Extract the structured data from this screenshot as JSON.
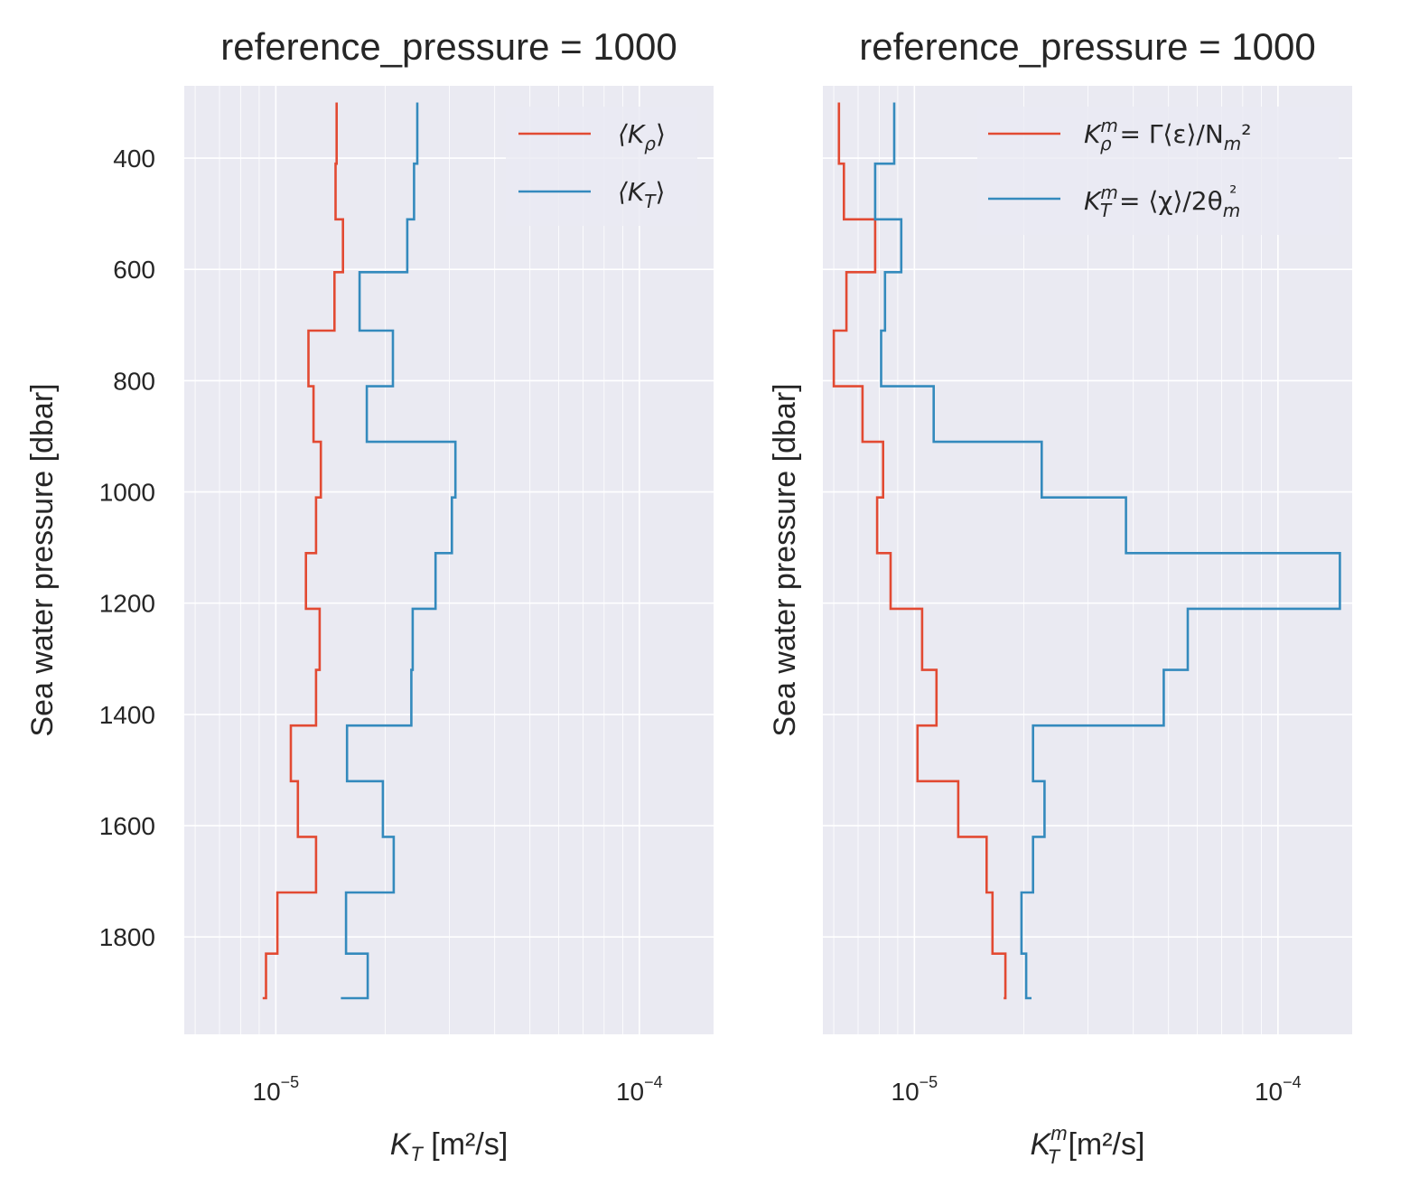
{
  "chart_data": [
    {
      "type": "line",
      "title": "reference_pressure = 1000",
      "xlabel": "K_T [m²/s]",
      "xlabel_parts": {
        "main": "K",
        "sub": "T",
        "sup": "",
        "unit": " [m²/s]"
      },
      "ylabel": "Sea water pressure [dbar]",
      "xscale": "log",
      "xlim": [
        5.6e-06,
        0.00016
      ],
      "ylim": [
        1975,
        270
      ],
      "yticks": [
        400,
        600,
        800,
        1000,
        1200,
        1400,
        1600,
        1800
      ],
      "xticks": [
        {
          "value": 1e-05,
          "base": "10",
          "exp": "−5"
        },
        {
          "value": 0.0001,
          "base": "10",
          "exp": "−4"
        }
      ],
      "grid": true,
      "legend_placement": "top-right",
      "series": [
        {
          "name": "⟨K_ρ⟩",
          "legend": {
            "a": "⟨K",
            "sub": "ρ",
            "b": "⟩"
          },
          "color": "#E24A33",
          "bins": [
            300,
            410,
            510,
            605,
            710,
            810,
            910,
            1010,
            1110,
            1210,
            1320,
            1420,
            1520,
            1620,
            1720,
            1830,
            1910
          ],
          "values": [
            1.47e-05,
            1.46e-05,
            1.53e-05,
            1.45e-05,
            1.23e-05,
            1.27e-05,
            1.33e-05,
            1.29e-05,
            1.21e-05,
            1.32e-05,
            1.29e-05,
            1.1e-05,
            1.15e-05,
            1.29e-05,
            1.01e-05,
            9.4e-06
          ]
        },
        {
          "name": "⟨K_T⟩",
          "legend": {
            "a": "⟨K",
            "sub": "T",
            "b": "⟩"
          },
          "color": "#348ABD",
          "bins": [
            300,
            410,
            510,
            605,
            710,
            810,
            910,
            1010,
            1110,
            1210,
            1320,
            1420,
            1520,
            1620,
            1720,
            1830,
            1910
          ],
          "values": [
            2.45e-05,
            2.4e-05,
            2.3e-05,
            1.7e-05,
            2.1e-05,
            1.78e-05,
            3.12e-05,
            3.05e-05,
            2.75e-05,
            2.38e-05,
            2.36e-05,
            1.57e-05,
            1.97e-05,
            2.11e-05,
            1.56e-05,
            1.79e-05
          ]
        }
      ],
      "series_end_values": [
        9.2e-06,
        1.51e-05
      ]
    },
    {
      "type": "line",
      "title": "reference_pressure = 1000",
      "xlabel": "K_T^m [m²/s]",
      "xlabel_parts": {
        "main": "K",
        "sub": "T",
        "sup": "m",
        "unit": " [m²/s]"
      },
      "ylabel": "Sea water pressure [dbar]",
      "xscale": "log",
      "xlim": [
        5.6e-06,
        0.00016
      ],
      "ylim": [
        1975,
        270
      ],
      "yticks": [
        400,
        600,
        800,
        1000,
        1200,
        1400,
        1600,
        1800
      ],
      "xticks": [
        {
          "value": 1e-05,
          "base": "10",
          "exp": "−5"
        },
        {
          "value": 0.0001,
          "base": "10",
          "exp": "−4"
        }
      ],
      "grid": true,
      "legend_placement": "top-right",
      "series": [
        {
          "name": "K_ρ^m = Γ⟨ε⟩/N_m²",
          "legend": {
            "a": "K",
            "sub": "ρ",
            "sup": "m",
            "b": " = Γ⟨ε⟩/N",
            "sub2": "m",
            "c": "²"
          },
          "color": "#E24A33",
          "bins": [
            300,
            410,
            510,
            605,
            710,
            810,
            910,
            1010,
            1110,
            1210,
            1320,
            1420,
            1520,
            1620,
            1720,
            1830,
            1910
          ],
          "values": [
            6.2e-06,
            6.4e-06,
            7.8e-06,
            6.5e-06,
            6e-06,
            7.2e-06,
            8.2e-06,
            7.9e-06,
            8.6e-06,
            1.05e-05,
            1.15e-05,
            1.02e-05,
            1.32e-05,
            1.58e-05,
            1.64e-05,
            1.78e-05
          ]
        },
        {
          "name": "K_T^m = ⟨χ⟩/2θ_m²",
          "legend": {
            "a": "K",
            "sub": "T",
            "sup": "m",
            "b": " = ⟨χ⟩/2θ",
            "sub2": "m",
            "c": "²"
          },
          "color": "#348ABD",
          "bins": [
            300,
            410,
            510,
            605,
            710,
            810,
            910,
            1010,
            1110,
            1210,
            1320,
            1420,
            1520,
            1620,
            1720,
            1830,
            1910
          ],
          "values": [
            8.8e-06,
            7.8e-06,
            9.2e-06,
            8.3e-06,
            8.1e-06,
            1.13e-05,
            2.24e-05,
            3.82e-05,
            0.000148,
            5.65e-05,
            4.85e-05,
            2.12e-05,
            2.28e-05,
            2.12e-05,
            1.97e-05,
            2.03e-05
          ]
        }
      ],
      "series_end_values": [
        1.76e-05,
        2.1e-05
      ]
    }
  ]
}
